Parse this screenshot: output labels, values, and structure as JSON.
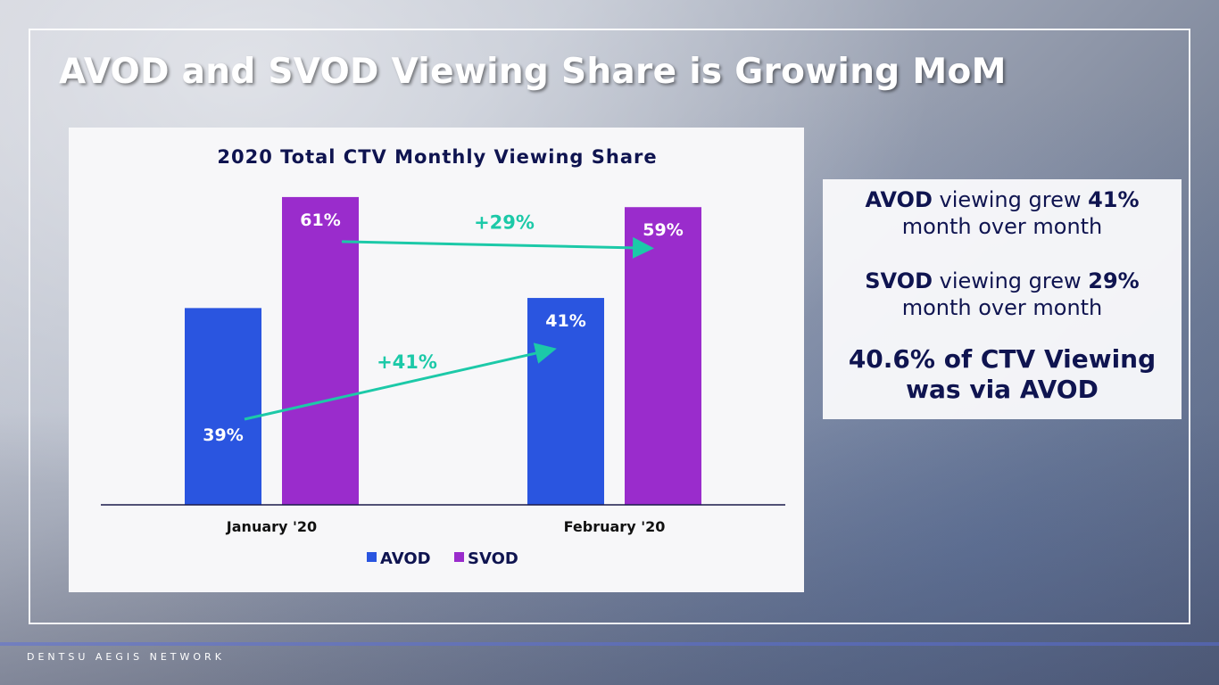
{
  "slide_title": "AVOD and SVOD Viewing Share is Growing MoM",
  "info_box": {
    "line1_bold1": "AVOD",
    "line1_text": " viewing grew ",
    "line1_bold2": "41%",
    "line1_cont": "month over month",
    "line2_bold1": "SVOD",
    "line2_text": " viewing grew ",
    "line2_bold2": "29%",
    "line2_cont": "month over month",
    "line3": "40.6% of CTV Viewing",
    "line3_cont": "was via AVOD"
  },
  "footer": "DENTSU AEGIS NETWORK",
  "chart_data": {
    "type": "bar",
    "title": "2020 Total CTV Monthly Viewing Share",
    "categories": [
      "January '20",
      "February '20"
    ],
    "series": [
      {
        "name": "AVOD",
        "color": "#2a55e0",
        "values": [
          39,
          41
        ],
        "labels": [
          "39%",
          "41%"
        ]
      },
      {
        "name": "SVOD",
        "color": "#9a2ccc",
        "values": [
          61,
          59
        ],
        "labels": [
          "61%",
          "59%"
        ]
      }
    ],
    "annotations": [
      {
        "text": "+41%",
        "series": "AVOD"
      },
      {
        "text": "+29%",
        "series": "SVOD"
      }
    ],
    "arrow_color": "#1cc9a8",
    "legend": "bottom",
    "ylim": [
      0,
      70
    ],
    "grid": false
  }
}
